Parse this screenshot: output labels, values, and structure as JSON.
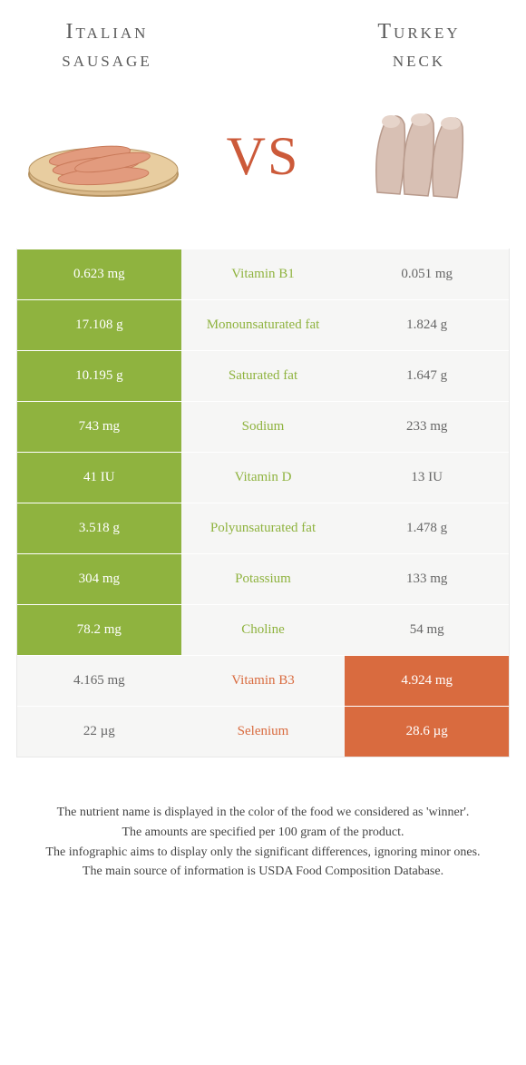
{
  "left_food": {
    "name": "Italian sausage",
    "title_lines": [
      "Italian",
      "sausage"
    ]
  },
  "right_food": {
    "name": "Turkey neck",
    "title_lines": [
      "Turkey",
      "neck"
    ]
  },
  "vs_label": "VS",
  "colors": {
    "left_on": "#8fb33f",
    "right_on": "#d96b3f",
    "off_bg": "#f6f6f5",
    "mid_bg": "#f6f6f5",
    "vs_text": "#cc5a3a"
  },
  "rows": [
    {
      "nutrient": "Vitamin B1",
      "left": "0.623 mg",
      "right": "0.051 mg",
      "winner": "left"
    },
    {
      "nutrient": "Monounsaturated fat",
      "left": "17.108 g",
      "right": "1.824 g",
      "winner": "left"
    },
    {
      "nutrient": "Saturated fat",
      "left": "10.195 g",
      "right": "1.647 g",
      "winner": "left"
    },
    {
      "nutrient": "Sodium",
      "left": "743 mg",
      "right": "233 mg",
      "winner": "left"
    },
    {
      "nutrient": "Vitamin D",
      "left": "41 IU",
      "right": "13 IU",
      "winner": "left"
    },
    {
      "nutrient": "Polyunsaturated fat",
      "left": "3.518 g",
      "right": "1.478 g",
      "winner": "left"
    },
    {
      "nutrient": "Potassium",
      "left": "304 mg",
      "right": "133 mg",
      "winner": "left"
    },
    {
      "nutrient": "Choline",
      "left": "78.2 mg",
      "right": "54 mg",
      "winner": "left"
    },
    {
      "nutrient": "Vitamin B3",
      "left": "4.165 mg",
      "right": "4.924 mg",
      "winner": "right"
    },
    {
      "nutrient": "Selenium",
      "left": "22 µg",
      "right": "28.6 µg",
      "winner": "right"
    }
  ],
  "footer_lines": [
    "The nutrient name is displayed in the color of the food we considered as 'winner'.",
    "The amounts are specified per 100 gram of the product.",
    "The infographic aims to display only the significant differences, ignoring minor ones.",
    "The main source of information is USDA Food Composition Database."
  ]
}
